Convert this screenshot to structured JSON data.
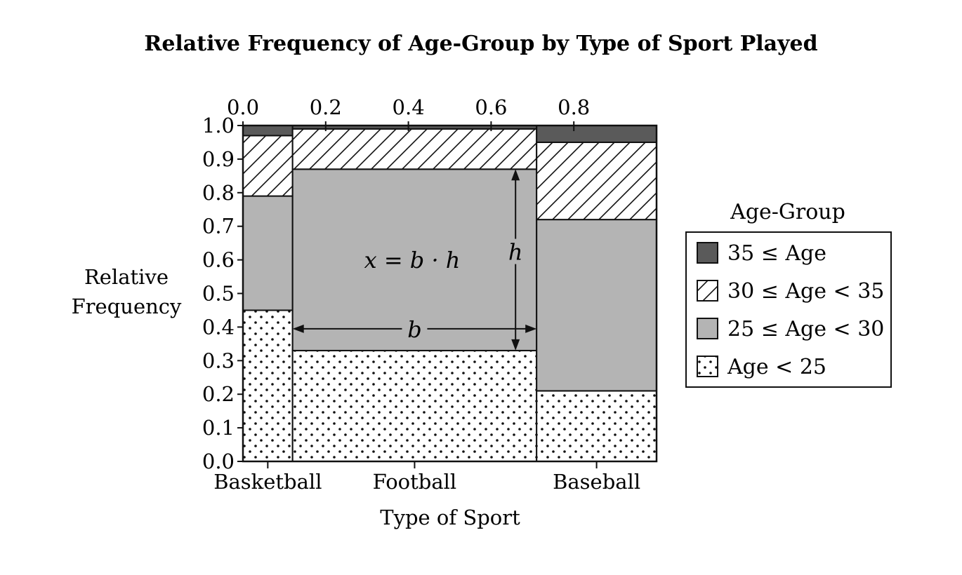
{
  "chart_data": {
    "type": "mosaic",
    "title": "Relative Frequency of Age-Group by Type of Sport Played",
    "xlabel": "Type of Sport",
    "ylabel_lines": [
      "Relative",
      "Frequency"
    ],
    "top_axis_ticks": [
      "0.0",
      "0.2",
      "0.4",
      "0.6",
      "0.8"
    ],
    "top_axis_values": [
      0.0,
      0.2,
      0.4,
      0.6,
      0.8
    ],
    "y_ticks": [
      "0.0",
      "0.1",
      "0.2",
      "0.3",
      "0.4",
      "0.5",
      "0.6",
      "0.7",
      "0.8",
      "0.9",
      "1.0"
    ],
    "ylim": [
      0,
      1
    ],
    "categories": [
      "Basketball",
      "Football",
      "Baseball"
    ],
    "column_widths": [
      0.12,
      0.59,
      0.29
    ],
    "legend_title": "Age-Group",
    "legend_entries": [
      "35 ≤ Age",
      "30 ≤ Age < 35",
      "25 ≤ Age < 30",
      "Age < 25"
    ],
    "series": [
      {
        "name": "Age < 25",
        "pattern": "dots",
        "values": [
          0.45,
          0.33,
          0.21
        ]
      },
      {
        "name": "25 ≤ Age < 30",
        "pattern": "gray",
        "values": [
          0.34,
          0.54,
          0.51
        ]
      },
      {
        "name": "30 ≤ Age < 35",
        "pattern": "hatch",
        "values": [
          0.18,
          0.12,
          0.23
        ]
      },
      {
        "name": "35 ≤ Age",
        "pattern": "dark",
        "values": [
          0.03,
          0.01,
          0.05
        ]
      }
    ],
    "colors": {
      "dark": "#5a5a5a",
      "gray": "#b4b4b4",
      "hatch_bg": "#ffffff",
      "dots_bg": "#ffffff"
    },
    "annotation": {
      "formula": "x = b · h",
      "h_label": "h",
      "b_label": "b",
      "column": "Football",
      "segment": "25 ≤ Age < 30"
    }
  }
}
